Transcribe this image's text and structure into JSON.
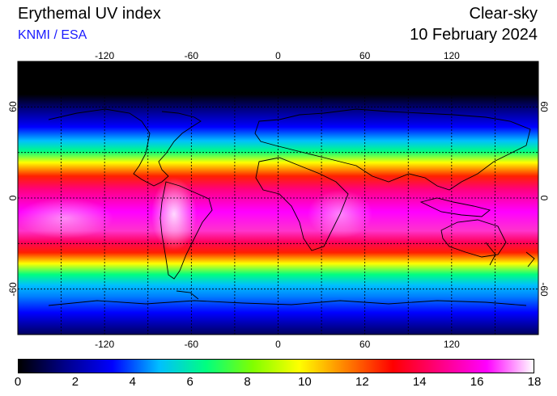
{
  "header": {
    "title": "Erythemal UV index",
    "subtitle": "KNMI / ESA",
    "mode": "Clear-sky",
    "date": "10 February 2024"
  },
  "map": {
    "lon_range": [
      -180,
      180
    ],
    "lat_range": [
      -90,
      90
    ],
    "grid_lon_step": 30,
    "grid_lat_step": 30,
    "lon_tick_labels": [
      "-120",
      "-60",
      "0",
      "60",
      "120"
    ],
    "lat_tick_labels": [
      "60",
      "0",
      "-60"
    ]
  },
  "colorbar": {
    "min": 0,
    "max": 18,
    "labels": [
      "0",
      "2",
      "4",
      "6",
      "8",
      "10",
      "12",
      "14",
      "16",
      "18"
    ],
    "colors": [
      "#000000",
      "#00008b",
      "#0000ff",
      "#00bfff",
      "#00ff80",
      "#80ff00",
      "#ffff00",
      "#ff8000",
      "#ff0000",
      "#ff0080",
      "#ff00ff",
      "#ffffff"
    ]
  }
}
